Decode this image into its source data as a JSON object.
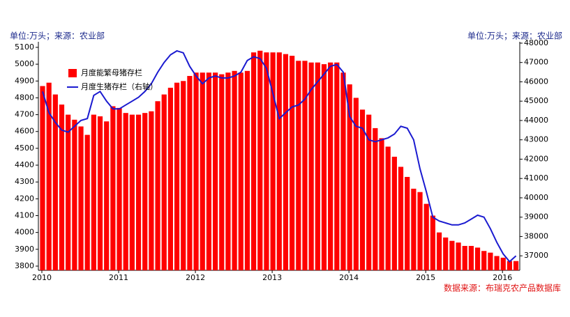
{
  "chart_data": {
    "type": "bar",
    "y_label": "单位:万头；来源：农业部",
    "y2_label": "单位:万头；来源：农业部",
    "source": "数据来源：布瑞克农产品数据库",
    "categories": [
      "2010",
      null,
      null,
      null,
      null,
      null,
      null,
      null,
      null,
      null,
      null,
      null,
      "2011",
      null,
      null,
      null,
      null,
      null,
      null,
      null,
      null,
      null,
      null,
      null,
      "2012",
      null,
      null,
      null,
      null,
      null,
      null,
      null,
      null,
      null,
      null,
      null,
      "2013",
      null,
      null,
      null,
      null,
      null,
      null,
      null,
      null,
      null,
      null,
      null,
      "2014",
      null,
      null,
      null,
      null,
      null,
      null,
      null,
      null,
      null,
      null,
      null,
      "2015",
      null,
      null,
      null,
      null,
      null,
      null,
      null,
      null,
      null,
      null,
      null,
      "2016",
      null,
      null
    ],
    "series": [
      {
        "name": "月度能繁母猪存栏",
        "type": "bar",
        "color": "#ff0000",
        "values": [
          4870,
          4890,
          4820,
          4760,
          4700,
          4670,
          4630,
          4580,
          4700,
          4690,
          4660,
          4750,
          4740,
          4710,
          4700,
          4700,
          4710,
          4720,
          4780,
          4820,
          4860,
          4890,
          4900,
          4930,
          4950,
          4950,
          4950,
          4950,
          4940,
          4950,
          4960,
          4950,
          4960,
          5070,
          5080,
          5070,
          5070,
          5070,
          5060,
          5050,
          5020,
          5020,
          5010,
          5010,
          5000,
          5010,
          5010,
          4950,
          4880,
          4800,
          4730,
          4700,
          4620,
          4560,
          4510,
          4450,
          4390,
          4330,
          4260,
          4240,
          4170,
          4100,
          4000,
          3970,
          3950,
          3940,
          3920,
          3920,
          3910,
          3890,
          3880,
          3860,
          3850,
          3830,
          3830
        ]
      },
      {
        "name": "月度生猪存栏（右轴）",
        "type": "line",
        "axis": "y2",
        "color": "#1a1ad0",
        "values": [
          45500,
          44400,
          43900,
          43500,
          43400,
          43700,
          44000,
          44100,
          45300,
          45500,
          45000,
          44600,
          44600,
          44800,
          45000,
          45200,
          45500,
          45900,
          46500,
          47000,
          47400,
          47600,
          47500,
          46800,
          46300,
          45900,
          46200,
          46300,
          46200,
          46200,
          46300,
          46500,
          47100,
          47300,
          47200,
          46700,
          45400,
          44100,
          44400,
          44700,
          44800,
          45100,
          45600,
          46000,
          46400,
          46800,
          46900,
          46500,
          44200,
          43700,
          43600,
          43000,
          42900,
          43000,
          43100,
          43300,
          43700,
          43600,
          43000,
          41500,
          40300,
          39000,
          38800,
          38700,
          38600,
          38600,
          38700,
          38900,
          39100,
          39000,
          38400,
          37700,
          37100,
          36700,
          37000
        ]
      }
    ],
    "ylim": [
      3775,
      5133
    ],
    "yticks": [
      3800,
      3900,
      4000,
      4100,
      4200,
      4300,
      4400,
      4500,
      4600,
      4700,
      4800,
      4900,
      5000,
      5100
    ],
    "y2lim": [
      36250,
      48070
    ],
    "y2ticks": [
      37000,
      38000,
      39000,
      40000,
      41000,
      42000,
      43000,
      44000,
      45000,
      46000,
      47000,
      48000
    ]
  }
}
